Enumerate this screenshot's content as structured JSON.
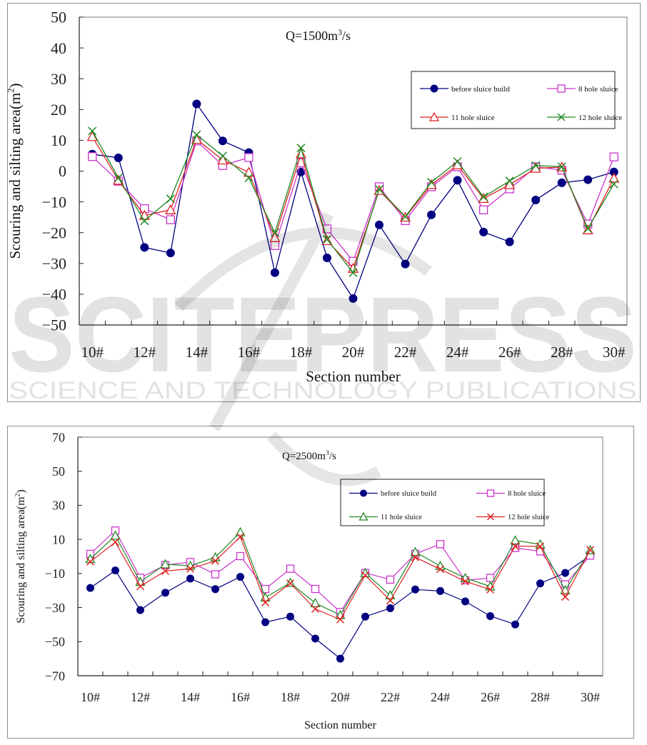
{
  "chart_data": [
    {
      "type": "line",
      "title": "Q=1500m³/s",
      "title_parts": {
        "prefix": "Q=1500m",
        "sup": "3",
        "suffix": "/s"
      },
      "xlabel": "Section number",
      "ylabel": "Scouring and silting area(m²)",
      "ylabel_parts": {
        "prefix": "Scouring and silting area(m",
        "sup": "2",
        "suffix": ")"
      },
      "ylim": [
        -50,
        50
      ],
      "yticks": [
        50,
        40,
        30,
        20,
        10,
        0,
        -10,
        -20,
        -30,
        -40,
        -50
      ],
      "ytick_labels": [
        "50",
        "40",
        "30",
        "20",
        "10",
        "0",
        "−10",
        "−20",
        "−30",
        "−40",
        "−50"
      ],
      "categories": [
        "10#",
        "11#",
        "12#",
        "13#",
        "14#",
        "15#",
        "16#",
        "17#",
        "18#",
        "19#",
        "20#",
        "21#",
        "22#",
        "23#",
        "24#",
        "25#",
        "26#",
        "27#",
        "28#",
        "29#",
        "30#"
      ],
      "xtick_labels": [
        "10#",
        "12#",
        "14#",
        "16#",
        "18#",
        "20#",
        "22#",
        "24#",
        "26#",
        "28#",
        "30#"
      ],
      "legend_position": "top-right",
      "grid": false,
      "series": [
        {
          "name": "before sluice build",
          "color": "#000080",
          "marker": "filled-circle",
          "values": [
            5.5,
            4.3,
            -24.8,
            -26.6,
            21.8,
            9.8,
            6.0,
            -33.0,
            -0.3,
            -28.2,
            -41.4,
            -17.5,
            -30.2,
            -14.2,
            -3.0,
            -19.8,
            -23.0,
            -9.4,
            -3.8,
            -2.8,
            -0.3
          ]
        },
        {
          "name": "8 hole sluice",
          "color": "#cc33cc",
          "marker": "open-square",
          "values": [
            4.7,
            -3.3,
            -12.2,
            -15.8,
            9.8,
            1.8,
            4.4,
            -24.2,
            2.7,
            -18.8,
            -29.3,
            -5.1,
            -16.1,
            -5.1,
            1.4,
            -12.6,
            -5.8,
            1.4,
            0.3,
            -17.2,
            4.6
          ]
        },
        {
          "name": "11 hole sluice",
          "color": "#dd2222",
          "marker": "open-triangle",
          "values": [
            11.2,
            -3.0,
            -14.4,
            -12.6,
            10.3,
            3.6,
            -0.4,
            -21.6,
            5.6,
            -22.6,
            -31.6,
            -6.3,
            -15.0,
            -4.4,
            2.0,
            -8.9,
            -4.4,
            0.9,
            1.3,
            -19.1,
            -2.3
          ]
        },
        {
          "name": "12 hole sluice",
          "color": "#228822",
          "marker": "cross",
          "values": [
            13.0,
            -2.2,
            -16.2,
            -9.0,
            11.8,
            4.9,
            -2.2,
            -20.0,
            7.5,
            -22.2,
            -33.0,
            -5.9,
            -14.8,
            -3.6,
            3.1,
            -8.4,
            -3.2,
            1.8,
            1.4,
            -18.7,
            -4.2
          ]
        }
      ]
    },
    {
      "type": "line",
      "title": "Q=2500m³/s",
      "title_parts": {
        "prefix": "Q=2500m",
        "sup": "3",
        "suffix": "/s"
      },
      "xlabel": "Section number",
      "ylabel": "Scouring and silting area(m²)",
      "ylabel_parts": {
        "prefix": "Scouring and silting area(m",
        "sup": "2",
        "suffix": ")"
      },
      "ylim": [
        -70,
        70
      ],
      "yticks": [
        70,
        50,
        30,
        10,
        -10,
        -30,
        -50,
        -70
      ],
      "ytick_labels": [
        "70",
        "50",
        "30",
        "10",
        "−10",
        "−30",
        "−50",
        "−70"
      ],
      "categories": [
        "10#",
        "11#",
        "12#",
        "13#",
        "14#",
        "15#",
        "16#",
        "17#",
        "18#",
        "19#",
        "20#",
        "21#",
        "22#",
        "23#",
        "24#",
        "25#",
        "26#",
        "27#",
        "28#",
        "29#",
        "30#"
      ],
      "xtick_labels": [
        "10#",
        "12#",
        "14#",
        "16#",
        "18#",
        "20#",
        "22#",
        "24#",
        "26#",
        "28#",
        "30#"
      ],
      "legend_position": "top-right",
      "grid": false,
      "series": [
        {
          "name": "before sluice build",
          "color": "#000080",
          "marker": "filled-circle",
          "values": [
            -18.5,
            -8.2,
            -31.5,
            -21.3,
            -13.0,
            -19.2,
            -12.0,
            -38.6,
            -35.3,
            -48.2,
            -60.0,
            -35.3,
            -30.4,
            -19.4,
            -20.3,
            -26.4,
            -35.0,
            -39.9,
            -15.8,
            -9.7,
            0.5
          ]
        },
        {
          "name": "8 hole sluice",
          "color": "#cc33cc",
          "marker": "open-square",
          "values": [
            1.5,
            15.2,
            -12.5,
            -5.1,
            -3.3,
            -10.5,
            0.2,
            -19.1,
            -7.2,
            -19.1,
            -32.6,
            -9.7,
            -13.6,
            1.5,
            7.2,
            -14.0,
            -12.6,
            5.0,
            3.0,
            -16.4,
            0.5
          ]
        },
        {
          "name": "11 hole sluice",
          "color": "#228822",
          "marker": "open-triangle",
          "values": [
            -1.5,
            12.2,
            -14.9,
            -4.6,
            -5.5,
            -0.5,
            14.2,
            -24.1,
            -15.5,
            -27.4,
            -34.4,
            -9.7,
            -22.8,
            2.6,
            -5.6,
            -12.7,
            -17.6,
            9.4,
            7.1,
            -19.8,
            3.7
          ]
        },
        {
          "name": "12 hole sluice",
          "color": "#dd2222",
          "marker": "cross",
          "values": [
            -3.1,
            8.4,
            -17.5,
            -8.6,
            -7.2,
            -2.6,
            11.5,
            -27.0,
            -15.8,
            -30.8,
            -37.0,
            -11.1,
            -25.9,
            -0.5,
            -7.5,
            -14.6,
            -19.5,
            6.0,
            5.9,
            -23.7,
            3.8
          ]
        }
      ]
    }
  ],
  "watermark": {
    "brand": "SCITEPRESS",
    "subtitle": "SCIENCE AND TECHNOLOGY PUBLICATIONS"
  }
}
